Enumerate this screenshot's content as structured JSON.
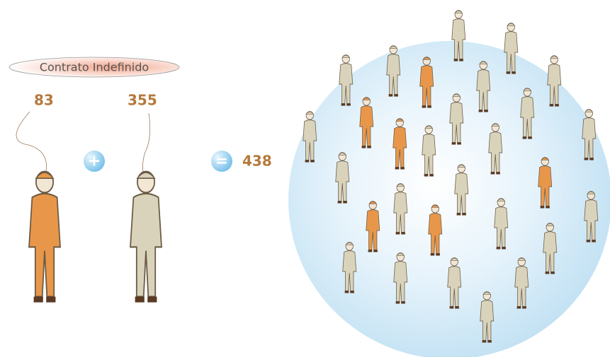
{
  "label": "Contrato Indefinido",
  "women": {
    "count": 83
  },
  "men": {
    "count": 355
  },
  "operators": [
    "+",
    "="
  ],
  "total": 438
}
